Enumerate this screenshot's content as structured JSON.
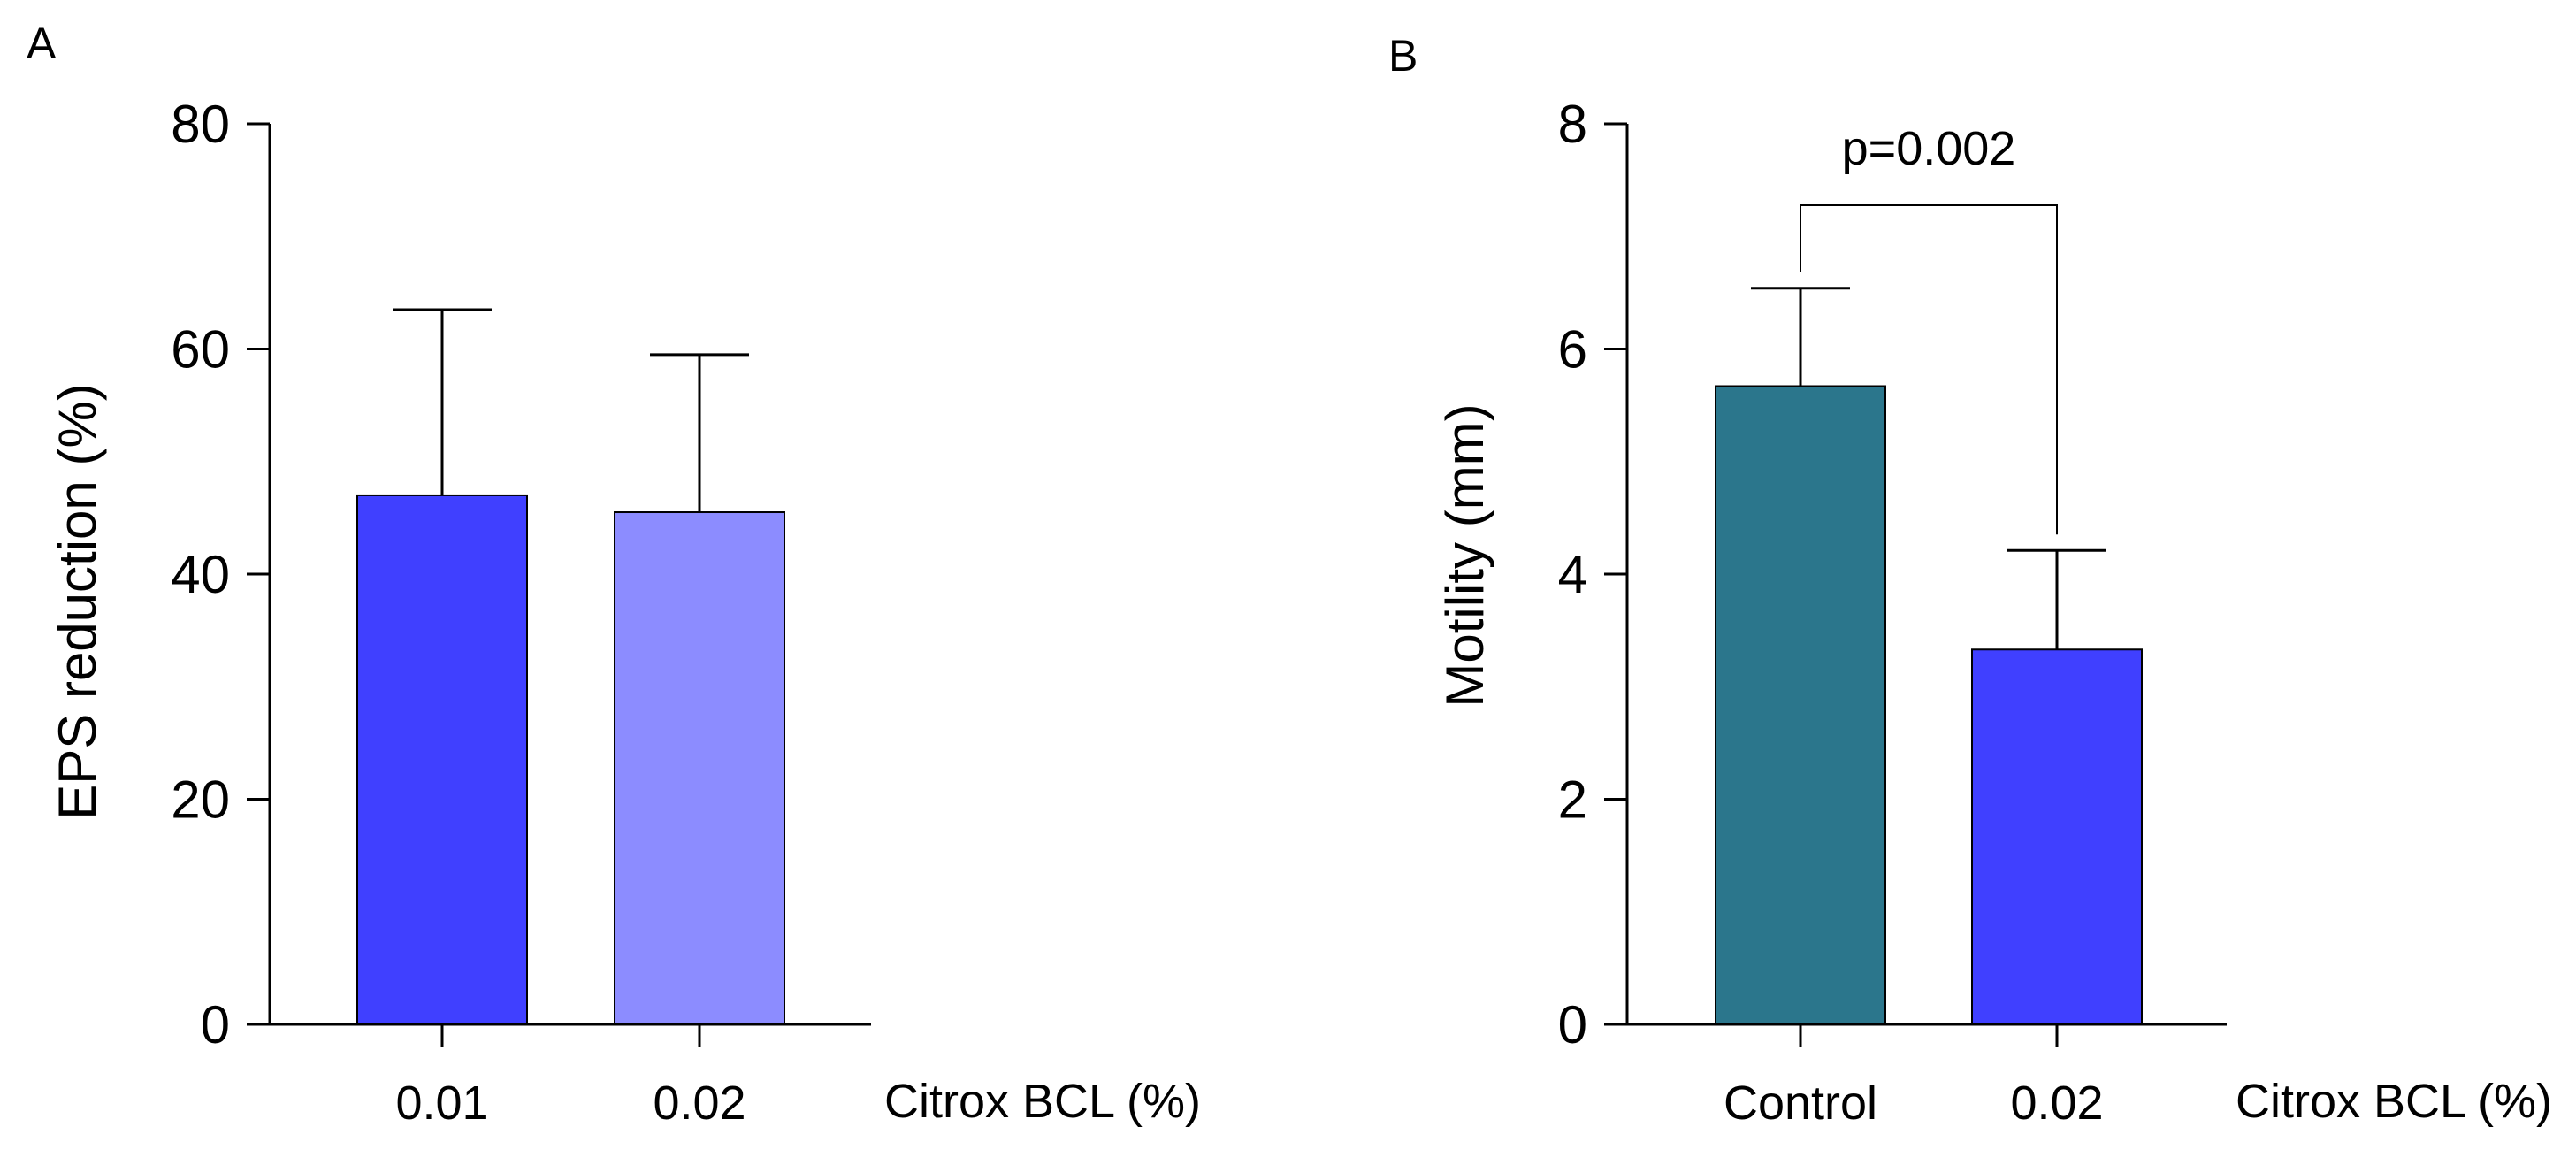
{
  "chart_data": [
    {
      "panel": "A",
      "type": "bar",
      "categories": [
        "0.01",
        "0.02"
      ],
      "values": [
        47,
        45.5
      ],
      "errors": [
        16.5,
        14
      ],
      "bar_colors": [
        "#4040ff",
        "#8c8cff"
      ],
      "ylabel": "EPS reduction (%)",
      "xlabel": "Citrox BCL (%)",
      "ylim": [
        0,
        80
      ],
      "yticks": [
        "0",
        "20",
        "40",
        "60",
        "80"
      ],
      "grid": false
    },
    {
      "panel": "B",
      "type": "bar",
      "categories": [
        "Control",
        "0.02"
      ],
      "values": [
        5.67,
        3.33
      ],
      "errors": [
        0.87,
        0.88
      ],
      "bar_colors": [
        "#2b768c",
        "#4040ff"
      ],
      "ylabel": "Motility (mm)",
      "xlabel": "Citrox BCL (%)",
      "ylim": [
        0,
        8
      ],
      "yticks": [
        "0",
        "2",
        "4",
        "6",
        "8"
      ],
      "grid": false,
      "annotation": {
        "text": "p=0.002",
        "between": [
          "Control",
          "0.02"
        ]
      }
    }
  ]
}
